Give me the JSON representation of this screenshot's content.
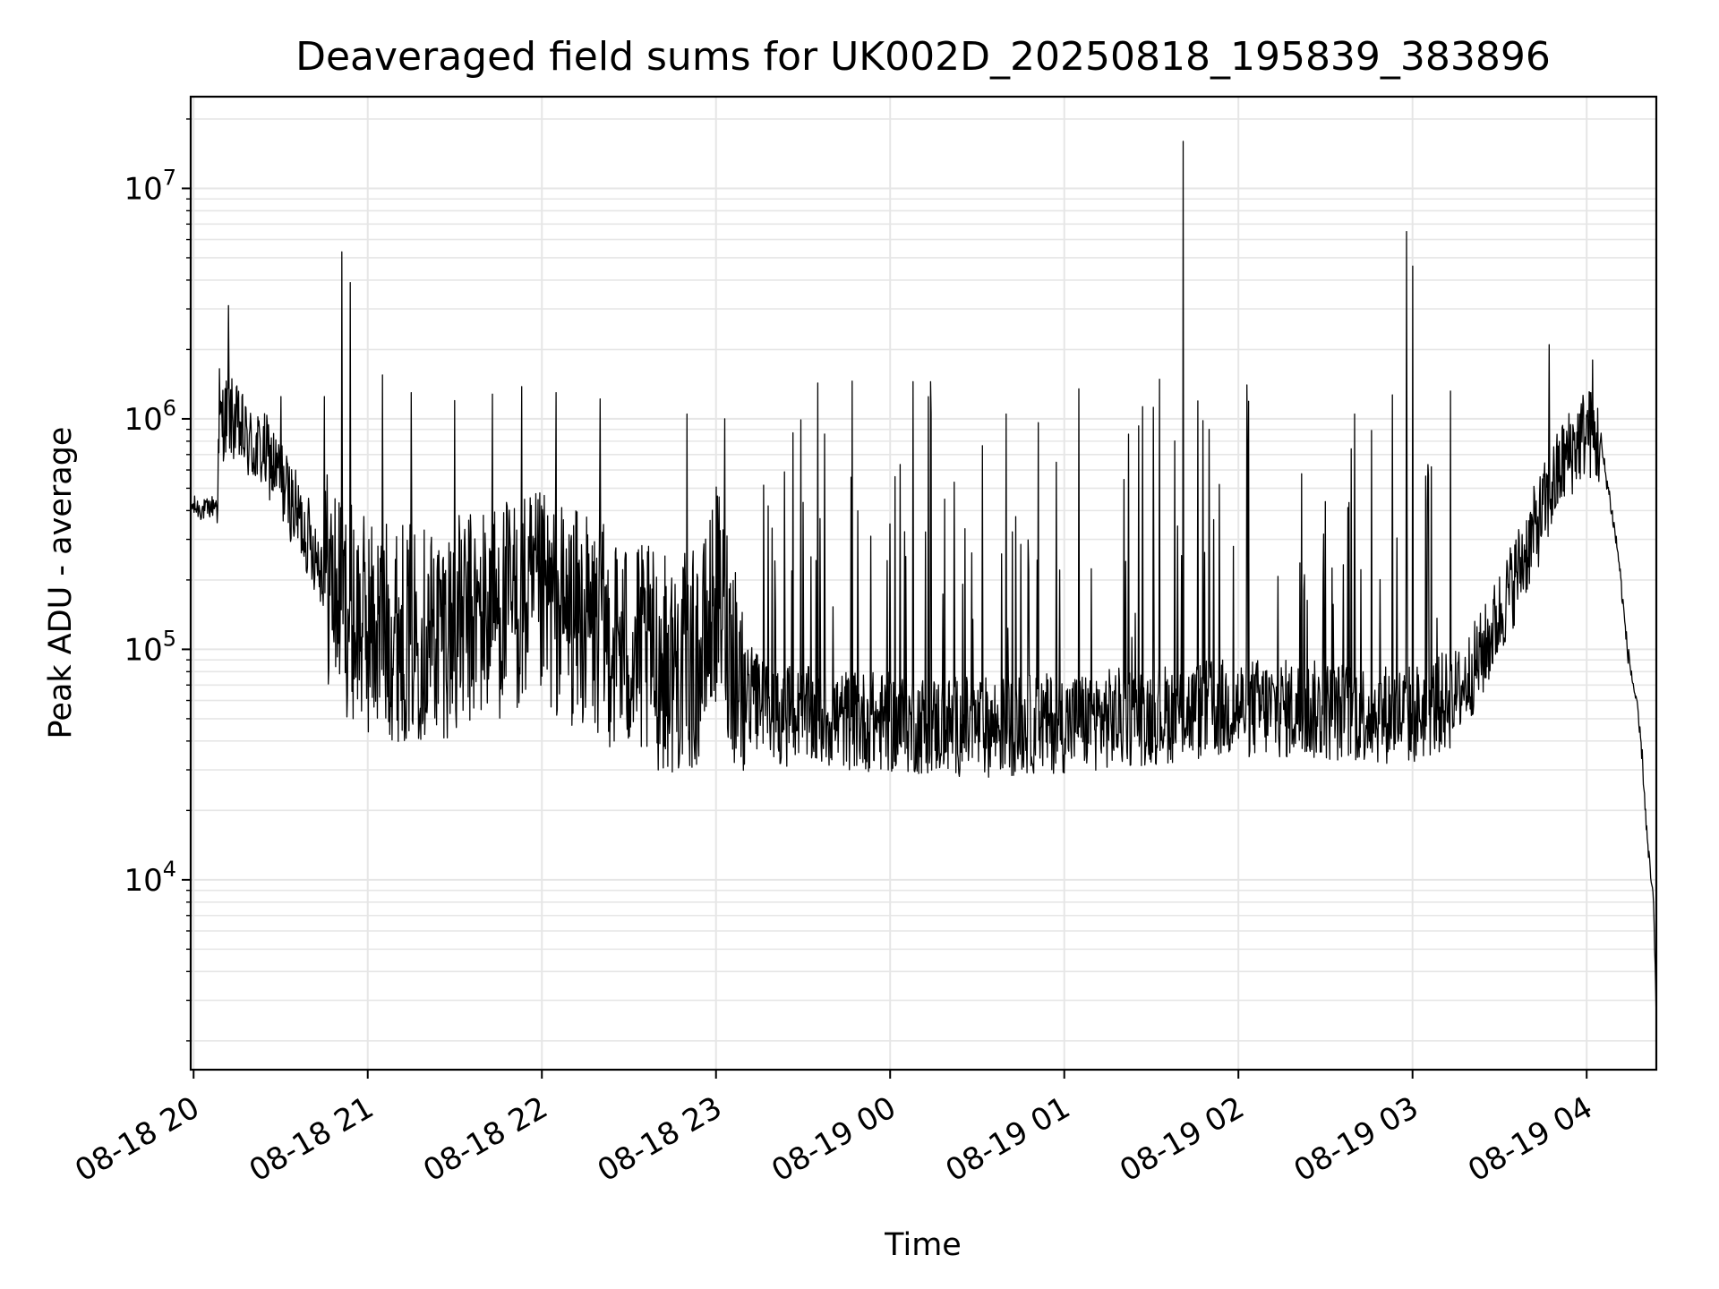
{
  "chart_data": {
    "type": "line",
    "title": "Deaveraged field sums for UK002D_20250818_195839_383896",
    "xlabel": "Time",
    "ylabel": "Peak ADU - average",
    "yscale": "log",
    "grid": true,
    "line_color": "#000000",
    "grid_color": "#e6e6e6",
    "xlim": [
      "2025-08-18 19:59",
      "2025-08-19 04:24"
    ],
    "ylim": [
      1500,
      25000000
    ],
    "x_ticks": [
      {
        "t": "2025-08-18 20:00",
        "label": "08-18 20"
      },
      {
        "t": "2025-08-18 21:00",
        "label": "08-18 21"
      },
      {
        "t": "2025-08-18 22:00",
        "label": "08-18 22"
      },
      {
        "t": "2025-08-18 23:00",
        "label": "08-18 23"
      },
      {
        "t": "2025-08-19 00:00",
        "label": "08-19 00"
      },
      {
        "t": "2025-08-19 01:00",
        "label": "08-19 01"
      },
      {
        "t": "2025-08-19 02:00",
        "label": "08-19 02"
      },
      {
        "t": "2025-08-19 03:00",
        "label": "08-19 03"
      },
      {
        "t": "2025-08-19 04:00",
        "label": "08-19 04"
      }
    ],
    "y_ticks": [
      {
        "value": 10000,
        "base": "10",
        "exp": "4"
      },
      {
        "value": 100000,
        "base": "10",
        "exp": "5"
      },
      {
        "value": 1000000,
        "base": "10",
        "exp": "6"
      },
      {
        "value": 10000000,
        "base": "10",
        "exp": "7"
      }
    ],
    "series": [
      {
        "points": [
          [
            "2025-08-18 19:59",
            420000
          ],
          [
            "2025-08-18 20:04",
            400000
          ],
          [
            "2025-08-18 20:08",
            430000
          ],
          [
            "2025-08-18 20:09",
            950000
          ],
          [
            "2025-08-18 20:12",
            1050000
          ],
          [
            "2025-08-18 20:20",
            750000
          ],
          [
            "2025-08-18 20:25",
            700000
          ],
          [
            "2025-08-18 20:30",
            550000
          ],
          [
            "2025-08-18 20:35",
            400000
          ],
          [
            "2025-08-18 20:40",
            300000
          ],
          [
            "2025-08-18 20:45",
            220000
          ],
          [
            "2025-08-18 20:50",
            170000
          ],
          [
            "2025-08-18 20:55",
            140000
          ],
          [
            "2025-08-18 21:00",
            125000
          ],
          [
            "2025-08-18 21:15",
            118000
          ],
          [
            "2025-08-18 21:30",
            125000
          ],
          [
            "2025-08-18 21:45",
            150000
          ],
          [
            "2025-08-18 22:00",
            160000
          ],
          [
            "2025-08-18 22:15",
            130000
          ],
          [
            "2025-08-18 22:30",
            100000
          ],
          [
            "2025-08-18 22:45",
            85000
          ],
          [
            "2025-08-18 22:55",
            90000
          ],
          [
            "2025-08-18 23:00",
            175000
          ],
          [
            "2025-08-18 23:05",
            110000
          ],
          [
            "2025-08-18 23:10",
            65000
          ],
          [
            "2025-08-18 23:20",
            52000
          ],
          [
            "2025-08-18 23:40",
            50000
          ],
          [
            "2025-08-19 00:00",
            48000
          ],
          [
            "2025-08-19 00:30",
            46000
          ],
          [
            "2025-08-19 01:00",
            48000
          ],
          [
            "2025-08-19 01:30",
            52000
          ],
          [
            "2025-08-19 02:00",
            56000
          ],
          [
            "2025-08-19 02:30",
            54000
          ],
          [
            "2025-08-19 03:00",
            52000
          ],
          [
            "2025-08-19 03:15",
            62000
          ],
          [
            "2025-08-19 03:25",
            100000
          ],
          [
            "2025-08-19 03:35",
            200000
          ],
          [
            "2025-08-19 03:45",
            400000
          ],
          [
            "2025-08-19 03:52",
            650000
          ],
          [
            "2025-08-19 04:00",
            900000
          ],
          [
            "2025-08-19 04:05",
            750000
          ],
          [
            "2025-08-19 04:08",
            450000
          ],
          [
            "2025-08-19 04:11",
            250000
          ],
          [
            "2025-08-19 04:14",
            100000
          ],
          [
            "2025-08-19 04:17",
            60000
          ],
          [
            "2025-08-19 04:19",
            36000
          ],
          [
            "2025-08-19 04:21",
            14000
          ],
          [
            "2025-08-19 04:23",
            8000
          ],
          [
            "2025-08-19 04:24",
            2500
          ]
        ],
        "spikes": [
          [
            "2025-08-18 20:09",
            1650000
          ],
          [
            "2025-08-18 20:12",
            3100000
          ],
          [
            "2025-08-18 20:30",
            1250000
          ],
          [
            "2025-08-18 20:45",
            1250000
          ],
          [
            "2025-08-18 20:51",
            5300000
          ],
          [
            "2025-08-18 20:54",
            3900000
          ],
          [
            "2025-08-18 21:05",
            1550000
          ],
          [
            "2025-08-18 21:15",
            1300000
          ],
          [
            "2025-08-18 21:30",
            1200000
          ],
          [
            "2025-08-18 21:43",
            1280000
          ],
          [
            "2025-08-18 21:53",
            1380000
          ],
          [
            "2025-08-18 22:05",
            1300000
          ],
          [
            "2025-08-18 22:20",
            1220000
          ],
          [
            "2025-08-18 22:50",
            1050000
          ],
          [
            "2025-08-18 23:03",
            1000000
          ],
          [
            "2025-08-18 23:35",
            1430000
          ],
          [
            "2025-08-19 00:08",
            1450000
          ],
          [
            "2025-08-19 00:14",
            1450000
          ],
          [
            "2025-08-19 00:40",
            1050000
          ],
          [
            "2025-08-19 01:05",
            1350000
          ],
          [
            "2025-08-19 01:27",
            1130000
          ],
          [
            "2025-08-19 01:41",
            16000000
          ],
          [
            "2025-08-19 01:50",
            900000
          ],
          [
            "2025-08-19 02:40",
            1050000
          ],
          [
            "2025-08-19 02:53",
            1270000
          ],
          [
            "2025-08-19 02:58",
            6500000
          ],
          [
            "2025-08-19 03:00",
            4600000
          ],
          [
            "2025-08-19 03:13",
            1320000
          ],
          [
            "2025-08-19 03:47",
            2100000
          ],
          [
            "2025-08-19 04:01",
            1300000
          ],
          [
            "2025-08-19 04:02",
            1800000
          ]
        ]
      }
    ]
  }
}
